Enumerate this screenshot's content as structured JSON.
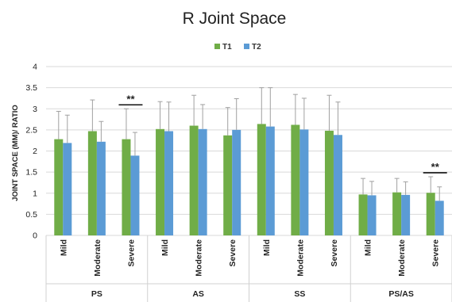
{
  "chart_data": {
    "type": "bar",
    "title": "R Joint Space",
    "ylabel": "JOINT SPACE (MM)/ RATIO",
    "xlabel": "",
    "ylim": [
      0,
      4
    ],
    "yticks": [
      "0",
      "0.5",
      "1",
      "1.5",
      "2",
      "2.5",
      "3",
      "3.5",
      "4"
    ],
    "ytick_values": [
      0,
      0.5,
      1,
      1.5,
      2,
      2.5,
      3,
      3.5,
      4
    ],
    "grid": true,
    "legend_position": "top-center",
    "groups": [
      {
        "name": "PS",
        "categories": [
          "Mild",
          "Moderate",
          "Severe"
        ]
      },
      {
        "name": "AS",
        "categories": [
          "Mild",
          "Moderate",
          "Severe"
        ]
      },
      {
        "name": "SS",
        "categories": [
          "Mild",
          "Moderate",
          "Severe"
        ]
      },
      {
        "name": "PS/AS",
        "categories": [
          "Mild",
          "Moderate",
          "Severe"
        ]
      }
    ],
    "series": [
      {
        "name": "T1",
        "color": "#70ad47",
        "values": [
          2.28,
          2.47,
          2.28,
          2.52,
          2.6,
          2.37,
          2.64,
          2.62,
          2.48,
          0.97,
          1.02,
          1.01
        ],
        "errors": [
          0.66,
          0.74,
          0.72,
          0.65,
          0.72,
          0.66,
          0.86,
          0.72,
          0.84,
          0.38,
          0.33,
          0.38
        ]
      },
      {
        "name": "T2",
        "color": "#5b9bd5",
        "values": [
          2.19,
          2.22,
          1.89,
          2.47,
          2.52,
          2.5,
          2.58,
          2.51,
          2.38,
          0.95,
          0.96,
          0.82
        ],
        "errors": [
          0.66,
          0.48,
          0.55,
          0.69,
          0.58,
          0.74,
          0.92,
          0.74,
          0.78,
          0.33,
          0.31,
          0.33
        ]
      }
    ],
    "annotations": [
      {
        "text": "**",
        "group": 0,
        "category": 2
      },
      {
        "text": "**",
        "group": 3,
        "category": 2
      }
    ]
  }
}
